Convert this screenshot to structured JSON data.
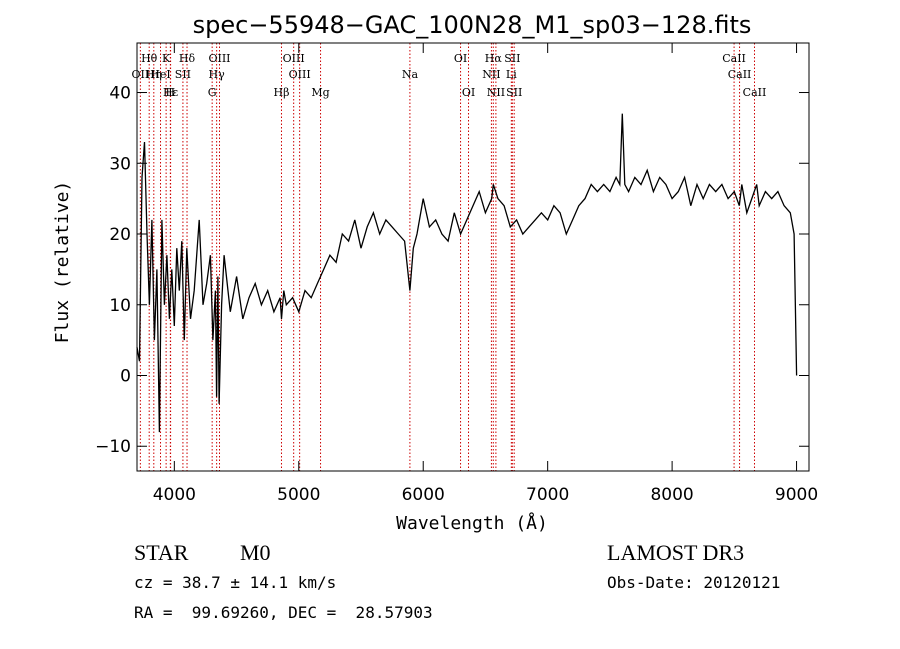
{
  "chart_data": {
    "type": "line",
    "title": "spec−55948−GAC_100N28_M1_sp03−128.fits",
    "xlabel": "Wavelength (Å)",
    "ylabel": "Flux (relative)",
    "xlim": [
      3700,
      9100
    ],
    "ylim": [
      -13.5,
      47
    ],
    "grid": false,
    "xticks": [
      4000,
      5000,
      6000,
      7000,
      8000,
      9000
    ],
    "yticks": [
      -10,
      0,
      10,
      20,
      30,
      40
    ],
    "xtick_labels": [
      "4000",
      "5000",
      "6000",
      "7000",
      "8000",
      "9000"
    ],
    "ytick_labels": [
      "−10",
      "0",
      "10",
      "20",
      "30",
      "40"
    ],
    "series": [
      {
        "name": "flux",
        "x": [
          3700,
          3720,
          3740,
          3760,
          3780,
          3800,
          3820,
          3840,
          3860,
          3880,
          3900,
          3920,
          3940,
          3960,
          3980,
          4000,
          4020,
          4040,
          4060,
          4080,
          4100,
          4130,
          4160,
          4200,
          4230,
          4260,
          4290,
          4310,
          4330,
          4340,
          4350,
          4360,
          4380,
          4400,
          4450,
          4500,
          4550,
          4600,
          4650,
          4700,
          4750,
          4800,
          4850,
          4861,
          4880,
          4900,
          4950,
          5000,
          5050,
          5100,
          5150,
          5200,
          5250,
          5300,
          5350,
          5400,
          5450,
          5500,
          5550,
          5600,
          5650,
          5700,
          5750,
          5800,
          5850,
          5893,
          5920,
          5950,
          6000,
          6050,
          6100,
          6150,
          6200,
          6250,
          6300,
          6350,
          6400,
          6450,
          6500,
          6550,
          6563,
          6600,
          6650,
          6700,
          6750,
          6800,
          6850,
          6900,
          6950,
          7000,
          7050,
          7100,
          7150,
          7200,
          7250,
          7300,
          7350,
          7400,
          7450,
          7500,
          7550,
          7580,
          7600,
          7620,
          7650,
          7700,
          7750,
          7800,
          7850,
          7900,
          7950,
          8000,
          8050,
          8100,
          8150,
          8200,
          8250,
          8300,
          8350,
          8400,
          8450,
          8500,
          8540,
          8560,
          8600,
          8640,
          8680,
          8700,
          8750,
          8800,
          8850,
          8900,
          8950,
          8980,
          9000
        ],
        "values": [
          4,
          2,
          28,
          33,
          20,
          10,
          22,
          5,
          15,
          -8,
          22,
          10,
          17,
          8,
          15,
          7,
          18,
          12,
          19,
          5,
          18,
          8,
          12,
          22,
          10,
          13,
          17,
          5,
          12,
          -3,
          14,
          -4,
          10,
          17,
          9,
          14,
          8,
          11,
          13,
          10,
          12,
          9,
          11,
          8,
          12,
          10,
          11,
          9,
          12,
          11,
          13,
          15,
          17,
          16,
          20,
          19,
          22,
          18,
          21,
          23,
          20,
          22,
          21,
          20,
          19,
          12,
          18,
          20,
          25,
          21,
          22,
          20,
          19,
          23,
          20,
          22,
          24,
          26,
          23,
          25,
          27,
          25,
          24,
          21,
          22,
          20,
          21,
          22,
          23,
          22,
          24,
          23,
          20,
          22,
          24,
          25,
          27,
          26,
          27,
          26,
          28,
          27,
          37,
          27,
          26,
          28,
          27,
          29,
          26,
          28,
          27,
          25,
          26,
          28,
          24,
          27,
          25,
          27,
          26,
          27,
          25,
          26,
          24,
          27,
          23,
          25,
          27,
          24,
          26,
          25,
          26,
          24,
          23,
          20,
          0
        ]
      }
    ],
    "lines": [
      {
        "name": "Hθ",
        "wavelength": 3798,
        "row": 0
      },
      {
        "name": "K",
        "wavelength": 3934,
        "row": 0
      },
      {
        "name": "Hδ",
        "wavelength": 4102,
        "row": 0
      },
      {
        "name": "OIII",
        "wavelength": 4363,
        "row": 0
      },
      {
        "name": "OIII",
        "wavelength": 4959,
        "row": 0
      },
      {
        "name": "OI",
        "wavelength": 6300,
        "row": 0
      },
      {
        "name": "Hα",
        "wavelength": 6563,
        "row": 0
      },
      {
        "name": "SII",
        "wavelength": 6716,
        "row": 0
      },
      {
        "name": "CaII",
        "wavelength": 8498,
        "row": 0
      },
      {
        "name": "OII",
        "wavelength": 3727,
        "row": 1
      },
      {
        "name": "Hη",
        "wavelength": 3835,
        "row": 1
      },
      {
        "name": "HeI",
        "wavelength": 3889,
        "row": 1
      },
      {
        "name": "SII",
        "wavelength": 4069,
        "row": 1
      },
      {
        "name": "Hγ",
        "wavelength": 4340,
        "row": 1
      },
      {
        "name": "OIII",
        "wavelength": 5007,
        "row": 1
      },
      {
        "name": "NII",
        "wavelength": 6548,
        "row": 1
      },
      {
        "name": "Li",
        "wavelength": 6708,
        "row": 1
      },
      {
        "name": "CaII",
        "wavelength": 8542,
        "row": 1
      },
      {
        "name": "Hε",
        "wavelength": 3970,
        "row": 2
      },
      {
        "name": "H",
        "wavelength": 3968,
        "row": 2
      },
      {
        "name": "G",
        "wavelength": 4304,
        "row": 2
      },
      {
        "name": "Hβ",
        "wavelength": 4861,
        "row": 2
      },
      {
        "name": "Mg",
        "wavelength": 5175,
        "row": 2
      },
      {
        "name": "Na",
        "wavelength": 5893,
        "row": 1
      },
      {
        "name": "OI",
        "wavelength": 6364,
        "row": 2
      },
      {
        "name": "NII",
        "wavelength": 6584,
        "row": 2
      },
      {
        "name": "SII",
        "wavelength": 6731,
        "row": 2
      },
      {
        "name": "CaII",
        "wavelength": 8662,
        "row": 2
      }
    ]
  },
  "footer": {
    "class": "STAR",
    "subclass": "M0",
    "survey": "LAMOST DR3",
    "cz": "cz = 38.7 ± 14.1 km/s",
    "obs_date": "Obs-Date: 20120121",
    "radec": "RA =  99.69260, DEC =  28.57903"
  },
  "colors": {
    "line_marker": "#cc0000",
    "spectrum": "#000000"
  }
}
